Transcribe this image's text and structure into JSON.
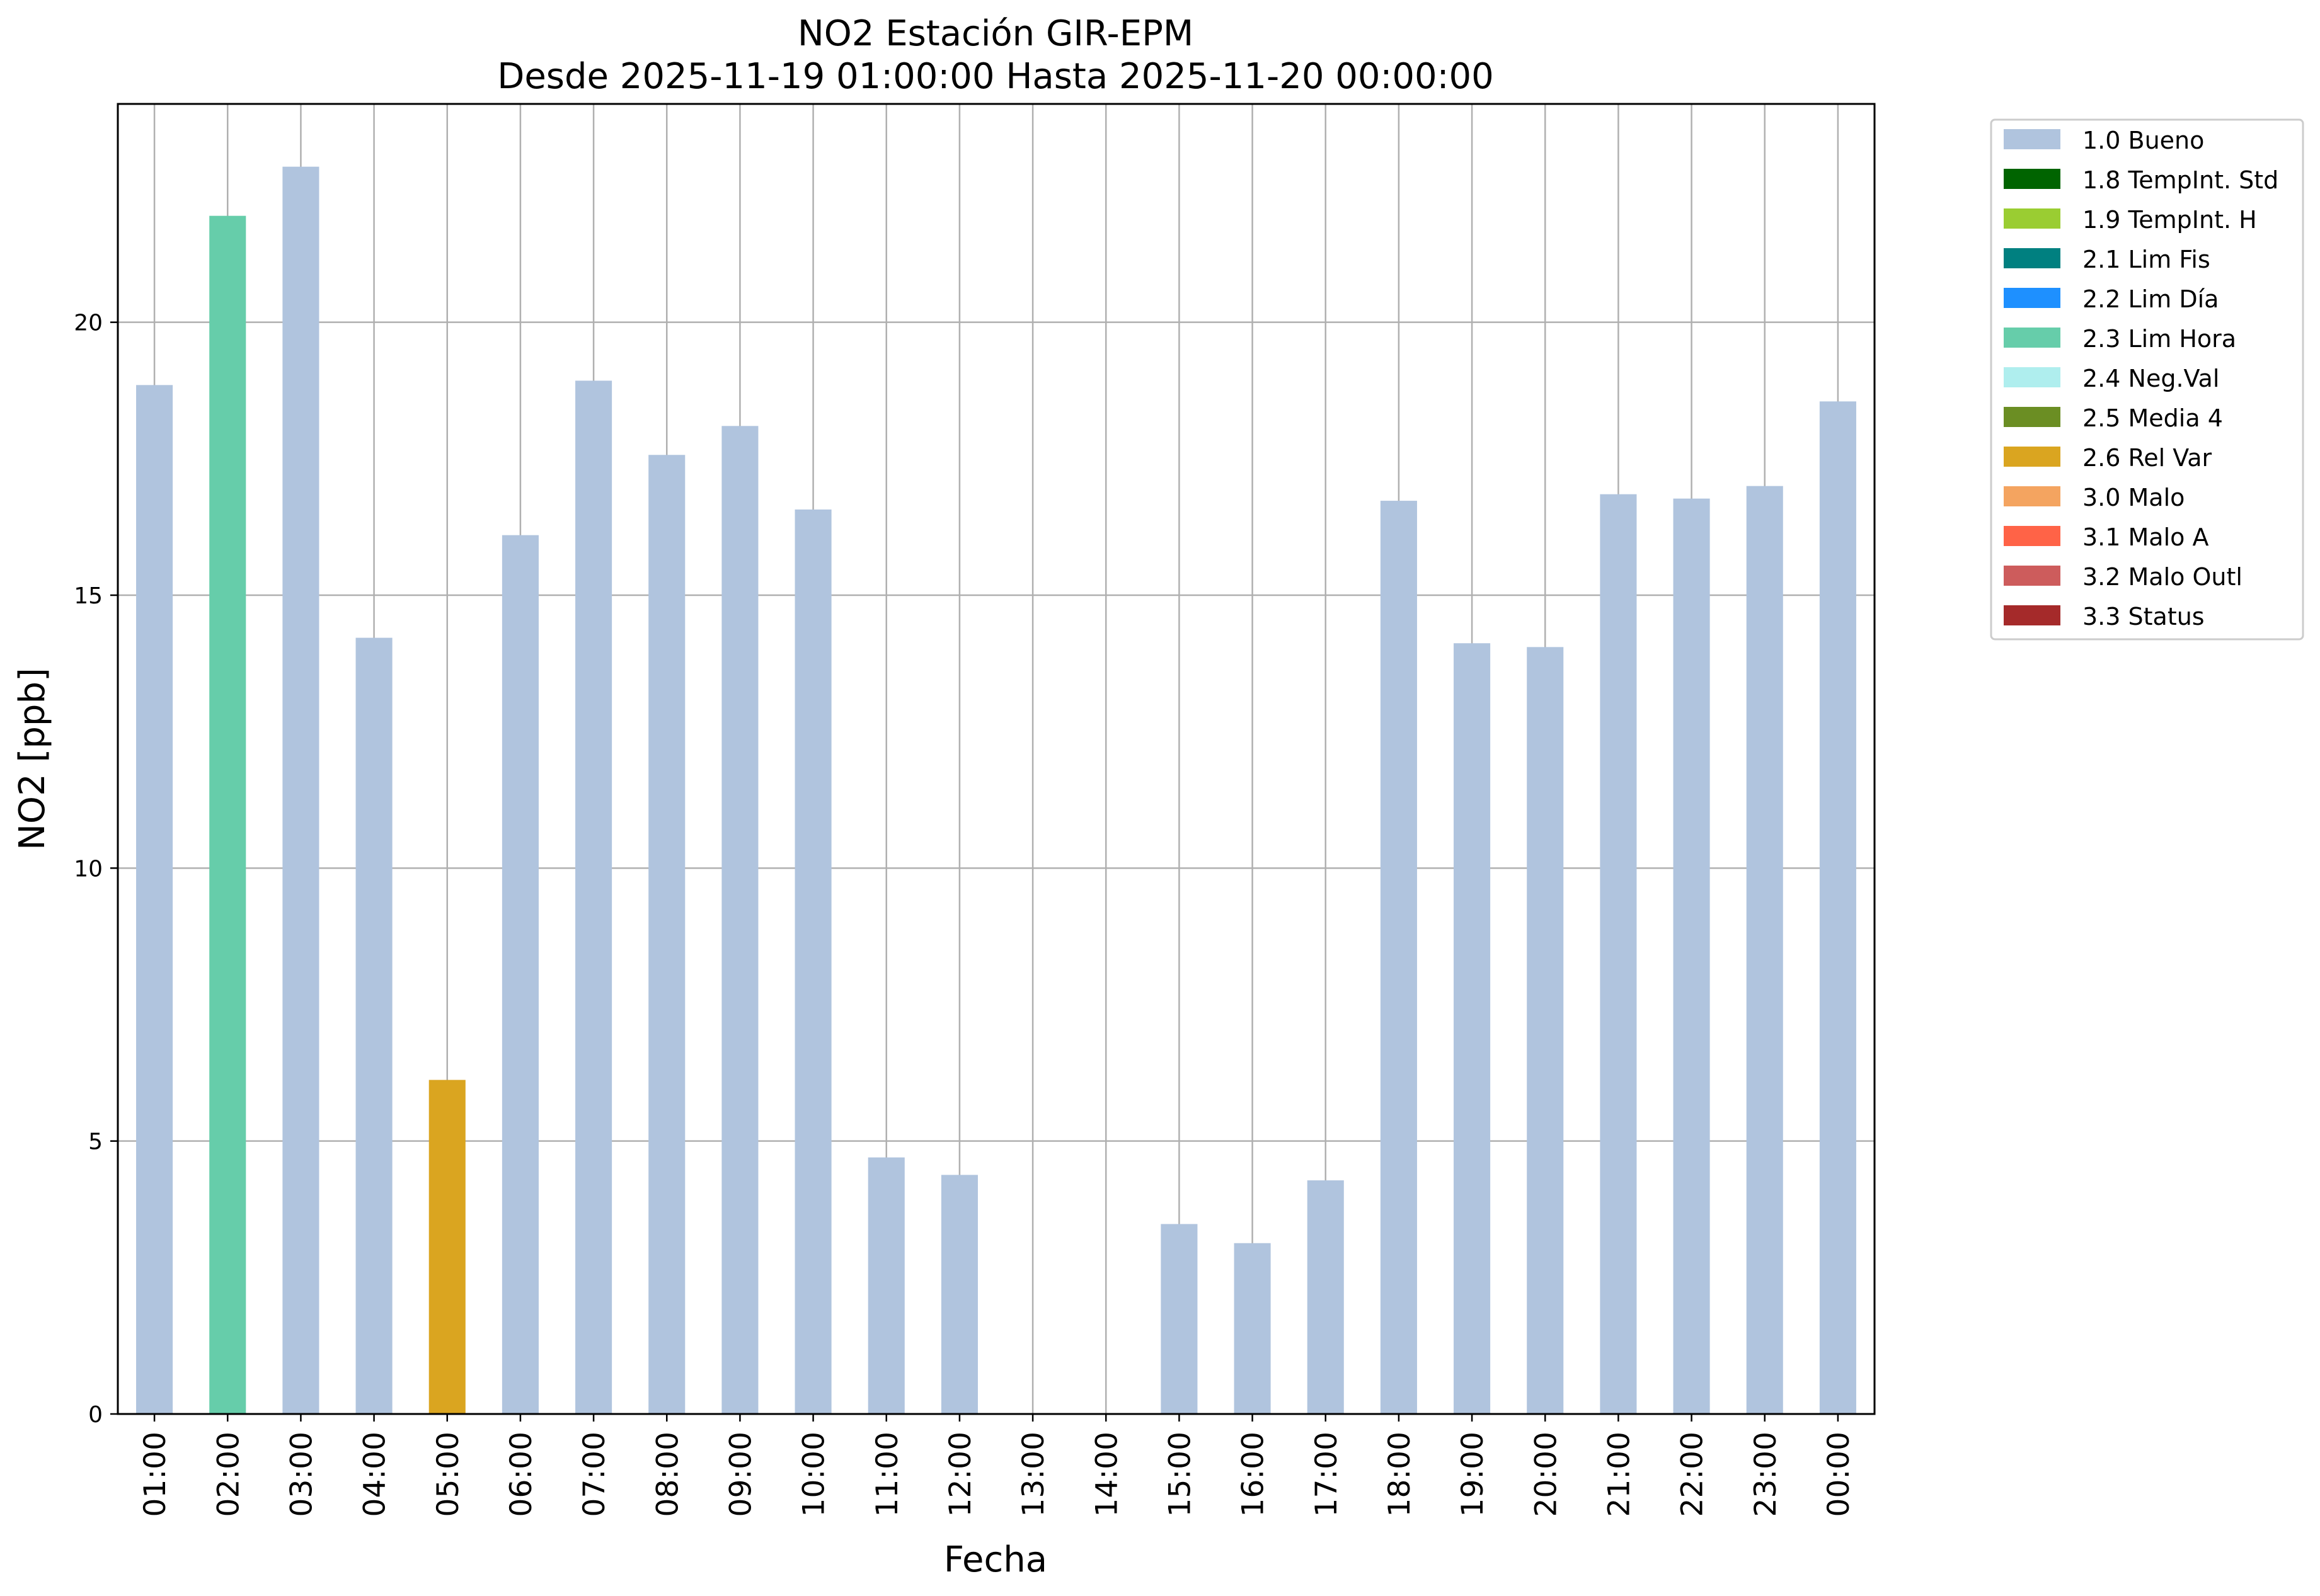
{
  "chart_data": {
    "type": "bar",
    "title": "NO2 Estación GIR-EPM",
    "subtitle": "Desde 2025-11-19 01:00:00 Hasta 2025-11-20 00:00:00",
    "xlabel": "Fecha",
    "ylabel": "NO2 [ppb]",
    "ylim": [
      0,
      24
    ],
    "yticks": [
      0,
      5,
      10,
      15,
      20
    ],
    "grid": true,
    "legend_position": "outside-top-right",
    "categories": [
      "01:00",
      "02:00",
      "03:00",
      "04:00",
      "05:00",
      "06:00",
      "07:00",
      "08:00",
      "09:00",
      "10:00",
      "11:00",
      "12:00",
      "13:00",
      "14:00",
      "15:00",
      "16:00",
      "17:00",
      "18:00",
      "19:00",
      "20:00",
      "21:00",
      "22:00",
      "23:00",
      "00:00"
    ],
    "values": [
      18.85,
      21.95,
      22.85,
      14.22,
      6.12,
      16.1,
      18.93,
      17.57,
      18.1,
      16.57,
      4.7,
      4.38,
      null,
      null,
      3.48,
      3.13,
      4.28,
      16.73,
      14.12,
      14.05,
      16.85,
      16.77,
      17.0,
      18.55
    ],
    "bar_flags": [
      "1.0 Bueno",
      "2.3 Lim Hora",
      "1.0 Bueno",
      "1.0 Bueno",
      "2.6 Rel Var",
      "1.0 Bueno",
      "1.0 Bueno",
      "1.0 Bueno",
      "1.0 Bueno",
      "1.0 Bueno",
      "1.0 Bueno",
      "1.0 Bueno",
      null,
      null,
      "1.0 Bueno",
      "1.0 Bueno",
      "1.0 Bueno",
      "1.0 Bueno",
      "1.0 Bueno",
      "1.0 Bueno",
      "1.0 Bueno",
      "1.0 Bueno",
      "1.0 Bueno",
      "1.0 Bueno"
    ],
    "legend": [
      {
        "label": "1.0 Bueno",
        "color": "#b0c4de"
      },
      {
        "label": "1.8 TempInt. Std",
        "color": "#006400"
      },
      {
        "label": "1.9 TempInt. H",
        "color": "#9acd32"
      },
      {
        "label": "2.1 Lim Fis",
        "color": "#008080"
      },
      {
        "label": "2.2 Lim Día",
        "color": "#1e90ff"
      },
      {
        "label": "2.3 Lim Hora",
        "color": "#66cdaa"
      },
      {
        "label": "2.4 Neg.Val",
        "color": "#afeeee"
      },
      {
        "label": "2.5 Media 4",
        "color": "#6b8e23"
      },
      {
        "label": "2.6 Rel Var",
        "color": "#daa520"
      },
      {
        "label": "3.0 Malo",
        "color": "#f4a460"
      },
      {
        "label": "3.1 Malo A",
        "color": "#ff6347"
      },
      {
        "label": "3.2 Malo Outl",
        "color": "#cd5c5c"
      },
      {
        "label": "3.3 Status",
        "color": "#a52a2a"
      }
    ]
  }
}
